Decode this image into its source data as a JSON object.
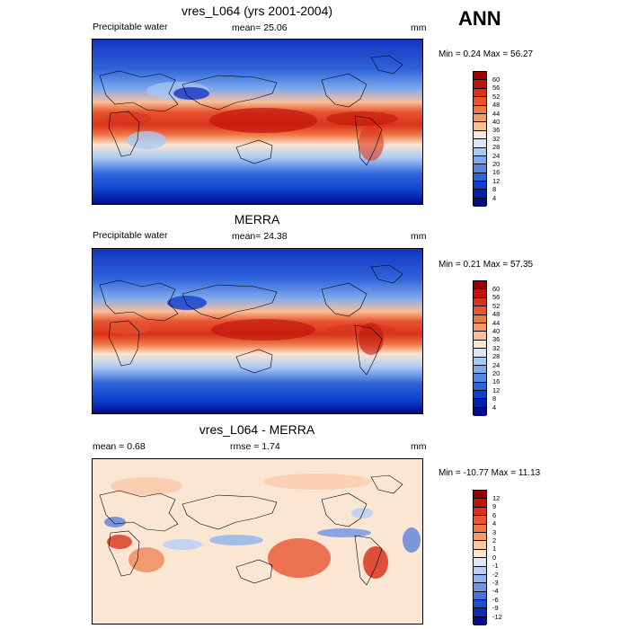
{
  "header": {
    "season": "ANN"
  },
  "panels": [
    {
      "id": "model",
      "title": "vres_L064 (yrs 2001-2004)",
      "left_label": "Precipitable water",
      "center_label": "mean=  25.06",
      "right_label": "mm",
      "stats": "Min =   0.24 Max =  56.27",
      "levels": [
        "60",
        "56",
        "52",
        "48",
        "44",
        "40",
        "36",
        "32",
        "28",
        "24",
        "20",
        "16",
        "12",
        "8",
        "4"
      ],
      "colors": [
        "#9a0000",
        "#c0140a",
        "#d9331c",
        "#e8552f",
        "#f07845",
        "#f59a68",
        "#f9bf98",
        "#fbe6d4",
        "#d8e7fa",
        "#aac9f4",
        "#7fa9ec",
        "#5587e2",
        "#2e64da",
        "#0f3fce",
        "#0020b0",
        "#000c8a"
      ]
    },
    {
      "id": "obs",
      "title": "MERRA",
      "left_label": "Precipitable water",
      "center_label": "mean=  24.38",
      "right_label": "mm",
      "stats": "Min =   0.21 Max =  57.35",
      "levels": [
        "60",
        "56",
        "52",
        "48",
        "44",
        "40",
        "36",
        "32",
        "28",
        "24",
        "20",
        "16",
        "12",
        "8",
        "4"
      ],
      "colors": [
        "#9a0000",
        "#c0140a",
        "#d9331c",
        "#e8552f",
        "#f07845",
        "#f59a68",
        "#f9bf98",
        "#fbe6d4",
        "#d8e7fa",
        "#aac9f4",
        "#7fa9ec",
        "#5587e2",
        "#2e64da",
        "#0f3fce",
        "#0020b0",
        "#000c8a"
      ]
    },
    {
      "id": "diff",
      "title": "vres_L064 - MERRA",
      "left_label": "mean =   0.68",
      "center_label": "rmse =   1.74",
      "right_label": "mm",
      "stats": "Min = -10.77 Max =  11.13",
      "levels": [
        "12",
        "9",
        "6",
        "4",
        "3",
        "2",
        "1",
        "0",
        "-1",
        "-2",
        "-3",
        "-4",
        "-6",
        "-9",
        "-12"
      ],
      "colors": [
        "#9a0000",
        "#c0140a",
        "#d9331c",
        "#e8552f",
        "#f07845",
        "#f59a68",
        "#f9c8a8",
        "#fbe6d4",
        "#dde9fb",
        "#b5d0f6",
        "#8fb4ee",
        "#6b96e6",
        "#4574dc",
        "#1e4fd0",
        "#0a2cb8",
        "#000c8a"
      ]
    }
  ]
}
